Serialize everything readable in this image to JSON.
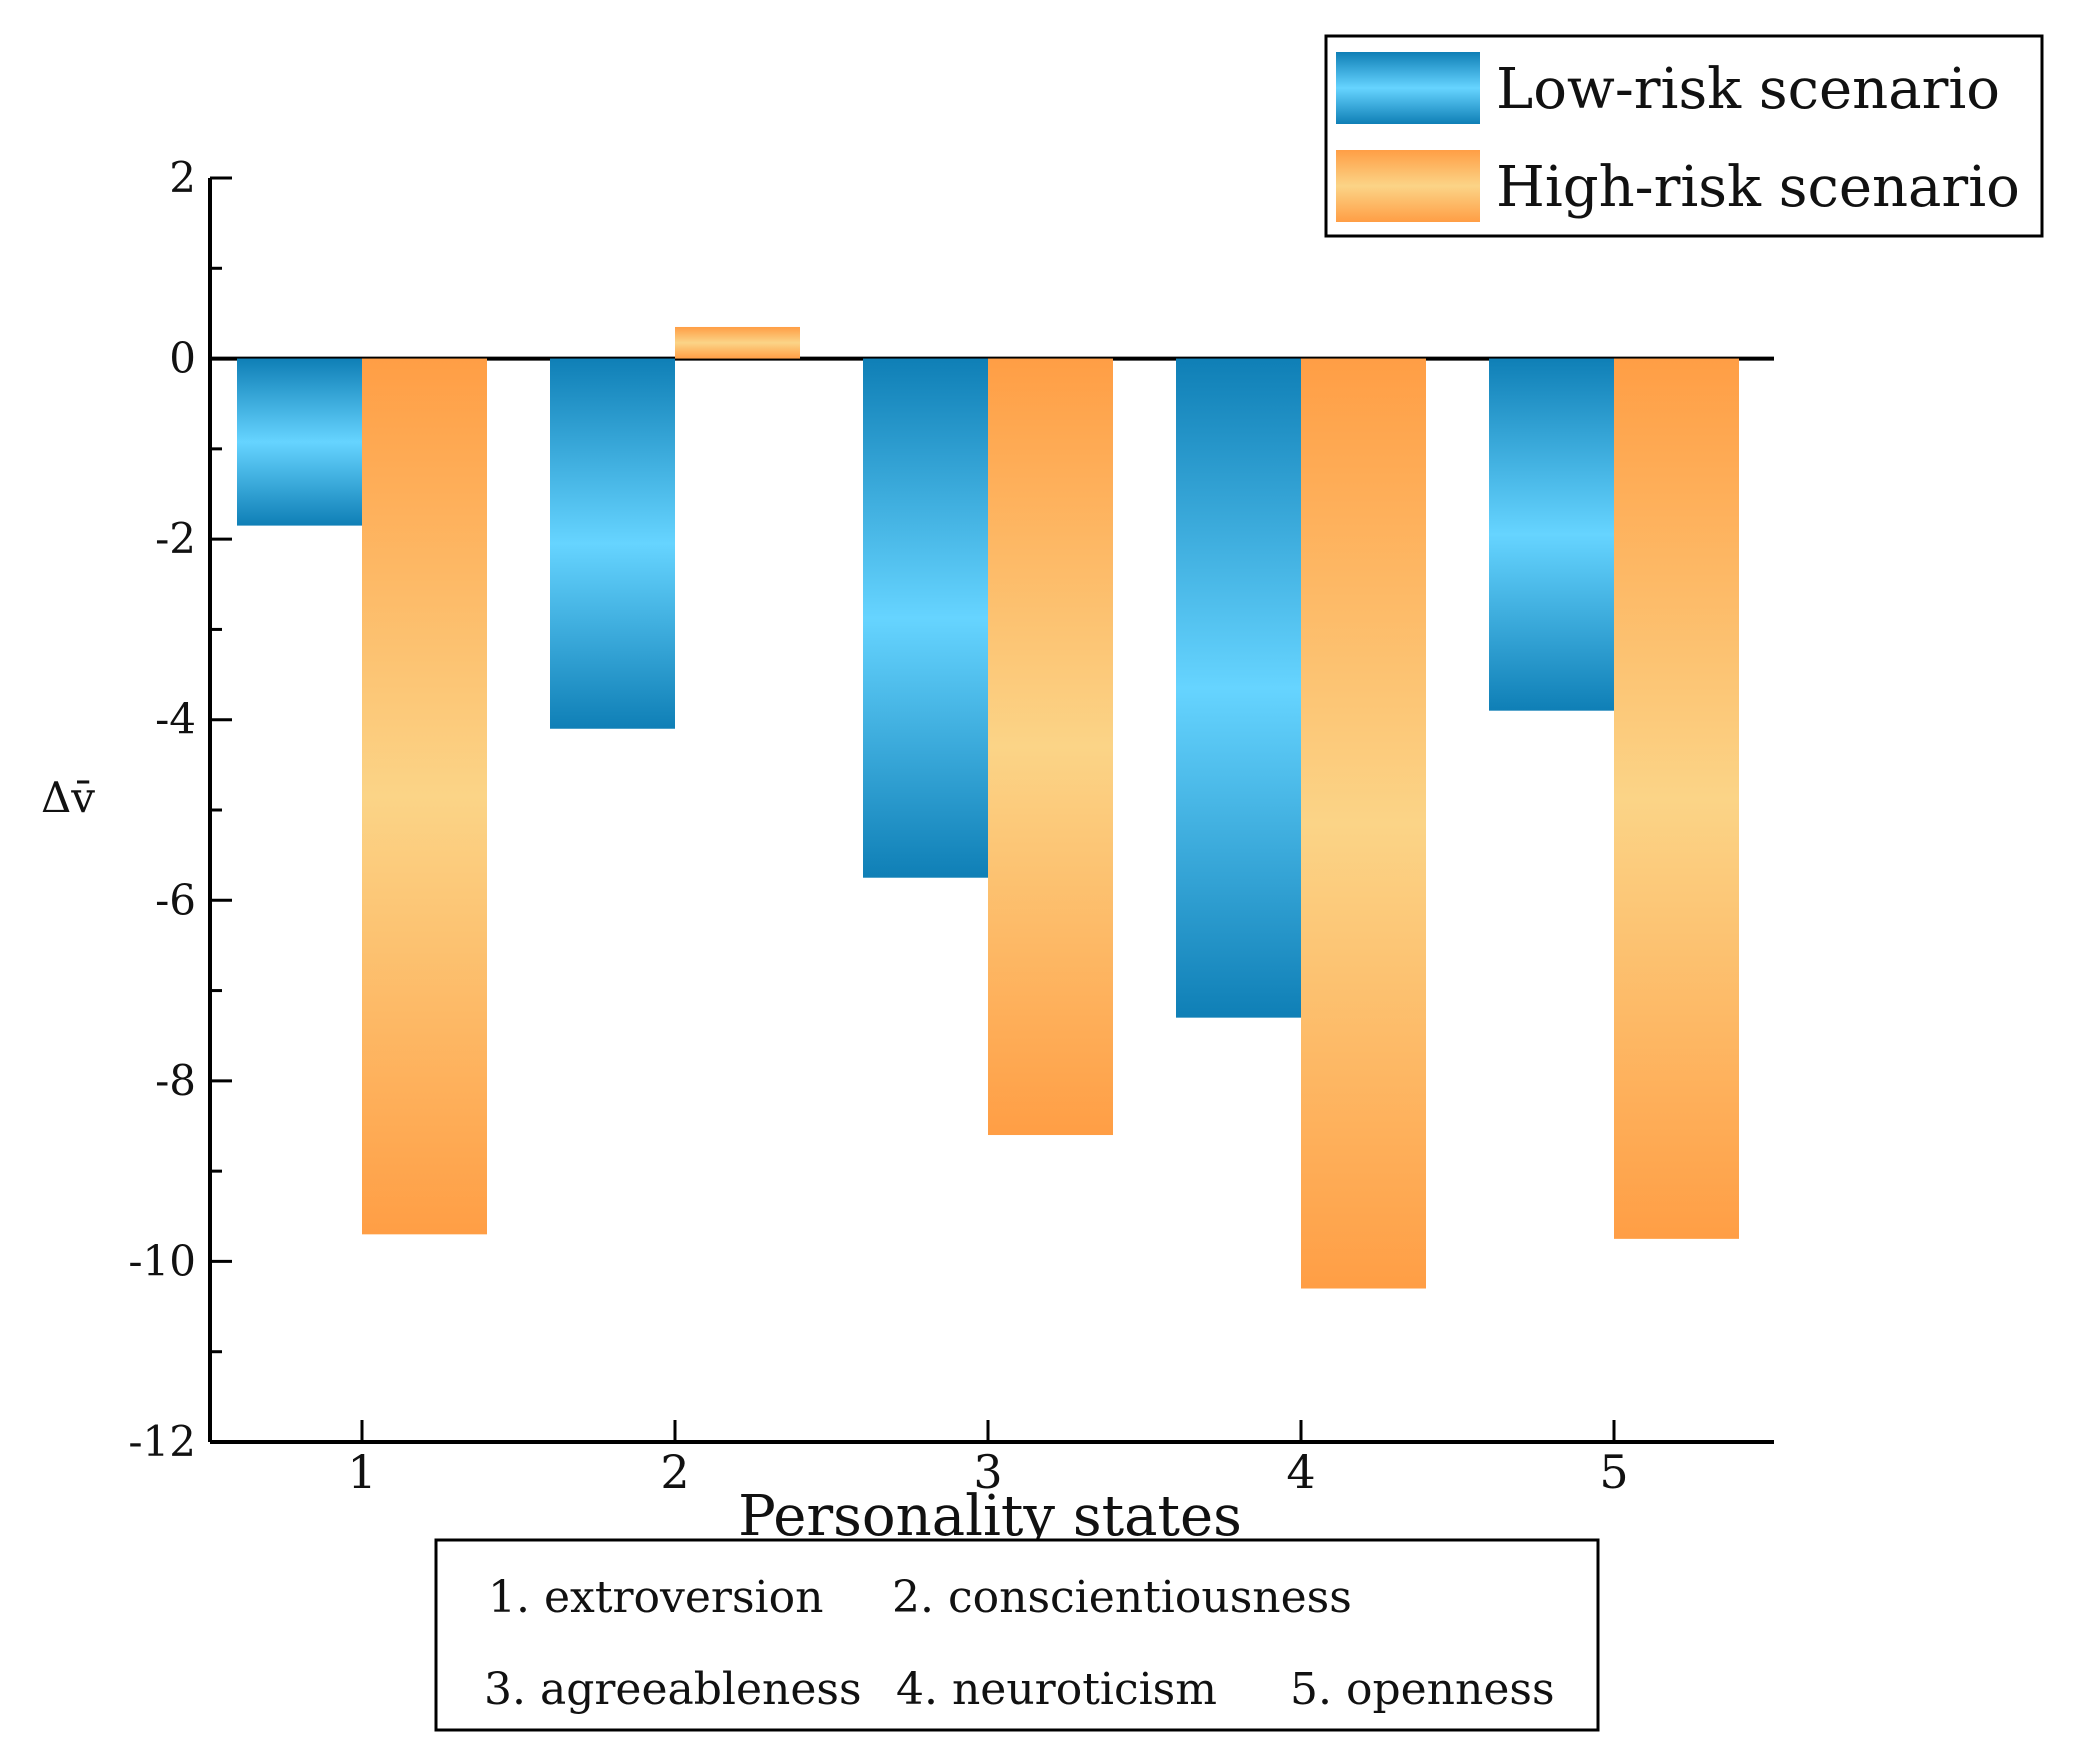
{
  "chart_data": {
    "type": "bar",
    "categories": [
      "1",
      "2",
      "3",
      "4",
      "5"
    ],
    "series": [
      {
        "name": "Low-risk scenario",
        "values": [
          -1.85,
          -4.1,
          -5.75,
          -7.3,
          -3.9
        ],
        "color": "#29a9e1"
      },
      {
        "name": "High-risk scenario",
        "values": [
          -9.7,
          0.35,
          -8.6,
          -10.3,
          -9.75
        ],
        "color": "#ffa24a"
      }
    ],
    "title": "",
    "xlabel": "Personality states",
    "ylabel": "Δv̄",
    "ylim": [
      -12,
      2
    ],
    "yticks": [
      "2",
      "0",
      "-2",
      "-4",
      "-6",
      "-8",
      "-10",
      "-12"
    ],
    "ytick_values": [
      2,
      0,
      -2,
      -4,
      -6,
      -8,
      -10,
      -12
    ],
    "legend_position": "top-right",
    "caption": {
      "line1": [
        "1. extroversion",
        "2. conscientiousness"
      ],
      "line2": [
        "3. agreeableness",
        "4. neuroticism",
        "5. openness"
      ]
    }
  }
}
